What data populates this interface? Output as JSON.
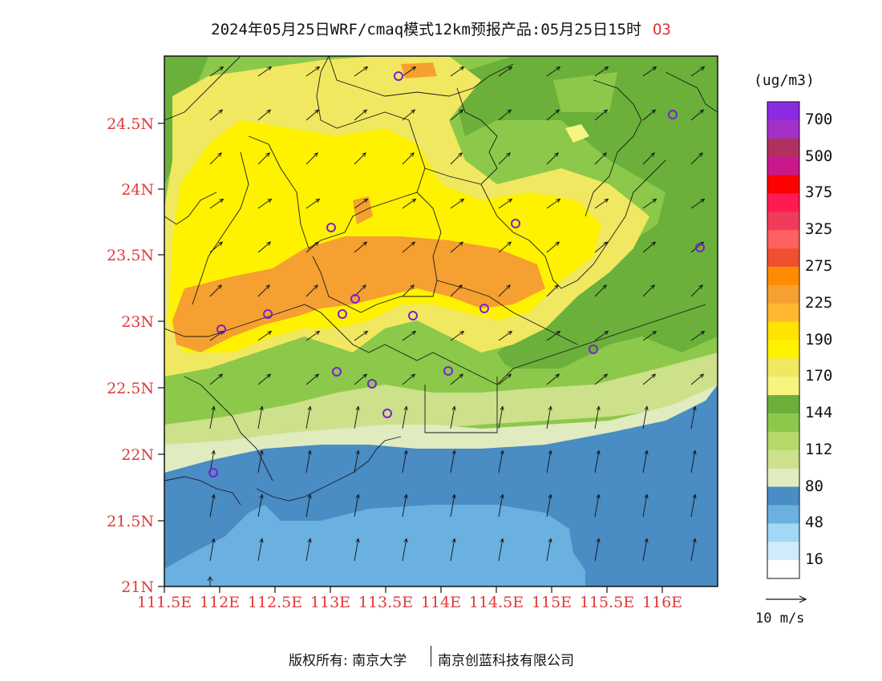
{
  "title": "2024年05月25日WRF/cmaq模式12km预报产品:05月25日15时",
  "species": "O3",
  "units": "(ug/m3)",
  "y_ticks": [
    "24.5N",
    "24N",
    "23.5N",
    "23N",
    "22.5N",
    "22N",
    "21.5N",
    "21N"
  ],
  "x_ticks": [
    "111.5E",
    "112E",
    "112.5E",
    "113E",
    "113.5E",
    "114E",
    "114.5E",
    "115E",
    "115.5E",
    "116E"
  ],
  "legend": {
    "levels": [
      "700",
      "500",
      "375",
      "325",
      "275",
      "225",
      "190",
      "170",
      "144",
      "112",
      "80",
      "48",
      "16"
    ],
    "colors": [
      "#8a2be2",
      "#a330c8",
      "#b03060",
      "#c8188c",
      "#ff0000",
      "#ff1a50",
      "#f03c5a",
      "#ff6060",
      "#f05030",
      "#ff8c00",
      "#f5a030",
      "#ffb830",
      "#ffe400",
      "#fff200",
      "#f0e860",
      "#f5f580",
      "#6ab03a",
      "#8cc84a",
      "#b4d86a",
      "#cde08a",
      "#e0ebc0",
      "#4a8cc4",
      "#6ab0e0",
      "#a0d8f5",
      "#d0ecfa",
      "#ffffff"
    ]
  },
  "scale_label": "10 m/s",
  "footer": {
    "left": "版权所有: 南京大学",
    "right": "南京创蓝科技有限公司"
  },
  "colors": {
    "sea_deep": "#4a8cc4",
    "sea_shallow": "#6ab0e0",
    "coast": "#e0ebc0",
    "band_112": "#cde08a",
    "band_128": "#b4d86a",
    "band_144": "#8cc84a",
    "band_160": "#6ab03a",
    "band_170": "#f5f580",
    "band_180": "#f0e860",
    "band_190": "#fff200",
    "band_225": "#f5a030",
    "tick_red": "#e03a3a",
    "site_marker": "#7a20d0"
  }
}
